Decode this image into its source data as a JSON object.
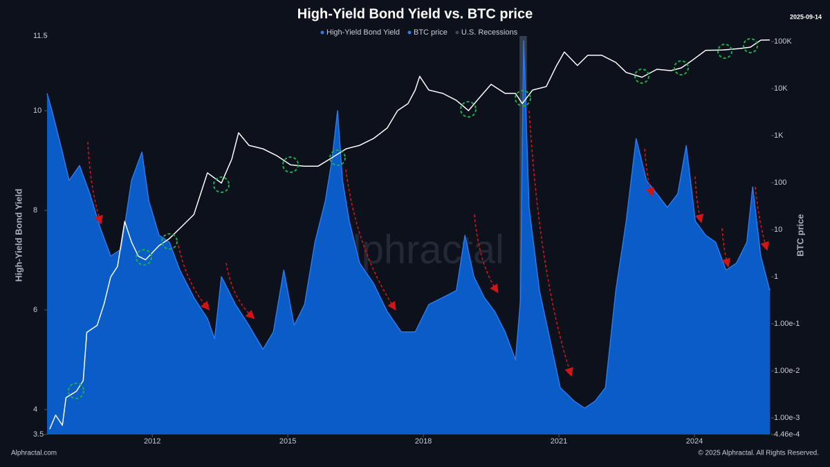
{
  "chart_data": {
    "type": "line",
    "title": "High-Yield Bond Yield vs. BTC price",
    "date": "2025-09-14",
    "ylabel": "High-Yield Bond Yield",
    "y2label": "BTC price",
    "watermark": "Alphractal",
    "footer_left": "Alphractal.com",
    "footer_right": "© 2025 Alphractal. All Rights Reserved.",
    "xlim": [
      2009.67,
      2025.7
    ],
    "xticks": [
      2012,
      2015,
      2018,
      2021,
      2024
    ],
    "ylim": [
      3.5,
      11.5
    ],
    "yticks": [
      3.5,
      4,
      6,
      8,
      10,
      11.5
    ],
    "y2lim": [
      0.000446,
      131000
    ],
    "y2log": true,
    "y2ticks": [
      {
        "value": 100000,
        "label": "100K"
      },
      {
        "value": 10000,
        "label": "10K"
      },
      {
        "value": 1000,
        "label": "1K"
      },
      100,
      10,
      1,
      {
        "value": 0.1,
        "label": "1.00e-1"
      },
      {
        "value": 0.01,
        "label": "1.00e-2"
      },
      {
        "value": 0.001,
        "label": "1.00e-3"
      },
      {
        "value": 0.000446,
        "label": "4.46e-4"
      }
    ],
    "recession": {
      "name": "U.S. Recessions",
      "color": "#3b4659",
      "x": [
        2020.13,
        2020.29
      ]
    },
    "series": [
      {
        "name": "High-Yield Bond Yield",
        "color": "#2f7bf0",
        "fill": "#0a5cc7",
        "x": [
          2009.67,
          2009.78,
          2010.01,
          2010.16,
          2010.39,
          2010.62,
          2010.85,
          2011.08,
          2011.31,
          2011.54,
          2011.77,
          2011.92,
          2012.15,
          2012.38,
          2012.61,
          2012.92,
          2013.22,
          2013.38,
          2013.53,
          2013.84,
          2014.14,
          2014.45,
          2014.68,
          2014.91,
          2015.14,
          2015.37,
          2015.6,
          2015.83,
          2015.98,
          2016.1,
          2016.21,
          2016.36,
          2016.59,
          2016.9,
          2017.2,
          2017.51,
          2017.82,
          2018.12,
          2018.43,
          2018.73,
          2018.92,
          2019.12,
          2019.35,
          2019.58,
          2019.81,
          2020.04,
          2020.15,
          2020.22,
          2020.34,
          2020.57,
          2020.8,
          2021.03,
          2021.34,
          2021.57,
          2021.8,
          2022.03,
          2022.26,
          2022.49,
          2022.71,
          2022.94,
          2023.17,
          2023.4,
          2023.63,
          2023.82,
          2024.02,
          2024.25,
          2024.47,
          2024.7,
          2024.93,
          2025.16,
          2025.29,
          2025.47,
          2025.67
        ],
        "values": [
          10.35,
          10.0,
          9.17,
          8.6,
          8.9,
          8.33,
          7.64,
          7.08,
          7.22,
          8.6,
          9.17,
          8.2,
          7.5,
          7.36,
          6.8,
          6.25,
          5.83,
          5.42,
          6.67,
          6.11,
          5.69,
          5.21,
          5.56,
          6.8,
          5.69,
          6.11,
          7.36,
          8.19,
          9.03,
          10.0,
          8.6,
          7.78,
          6.94,
          6.53,
          5.97,
          5.56,
          5.56,
          6.11,
          6.25,
          6.39,
          7.5,
          6.67,
          6.25,
          5.97,
          5.56,
          5.0,
          6.2,
          11.4,
          8.06,
          6.39,
          5.42,
          4.44,
          4.17,
          4.03,
          4.17,
          4.44,
          6.39,
          7.78,
          9.44,
          8.6,
          8.33,
          8.06,
          8.33,
          9.3,
          7.78,
          7.5,
          7.36,
          6.8,
          6.94,
          7.36,
          8.47,
          7.08,
          6.39
        ]
      },
      {
        "name": "BTC price",
        "color": "#ffffff",
        "axis": "y2",
        "x": [
          2009.73,
          2009.86,
          2010.01,
          2010.09,
          2010.32,
          2010.47,
          2010.55,
          2010.78,
          2010.93,
          2011.08,
          2011.23,
          2011.39,
          2011.54,
          2011.69,
          2011.85,
          2012.15,
          2012.38,
          2012.61,
          2012.92,
          2013.22,
          2013.53,
          2013.76,
          2013.91,
          2014.14,
          2014.45,
          2014.76,
          2015.06,
          2015.37,
          2015.67,
          2015.98,
          2016.29,
          2016.59,
          2016.9,
          2017.2,
          2017.43,
          2017.66,
          2017.82,
          2017.92,
          2018.12,
          2018.43,
          2018.73,
          2019.0,
          2019.19,
          2019.5,
          2019.81,
          2020.04,
          2020.19,
          2020.42,
          2020.72,
          2020.95,
          2021.12,
          2021.41,
          2021.64,
          2021.95,
          2022.26,
          2022.49,
          2022.84,
          2023.17,
          2023.48,
          2023.71,
          2023.94,
          2024.25,
          2024.63,
          2025.01,
          2025.24,
          2025.47,
          2025.67
        ],
        "values": [
          0.00058,
          0.00115,
          0.0007,
          0.0027,
          0.0037,
          0.0062,
          0.066,
          0.093,
          0.26,
          1,
          1.66,
          15,
          5.5,
          2.75,
          2.3,
          4.6,
          6.5,
          10.7,
          21,
          162,
          98,
          316,
          1150,
          620,
          525,
          372,
          240,
          224,
          224,
          340,
          525,
          620,
          870,
          1450,
          3400,
          4800,
          9300,
          18200,
          9300,
          7900,
          5600,
          3400,
          5600,
          12300,
          7900,
          7900,
          4800,
          9300,
          11000,
          31000,
          60000,
          31000,
          51000,
          51000,
          36000,
          22000,
          17400,
          25700,
          24000,
          27500,
          39000,
          65000,
          66000,
          71000,
          76000,
          107000,
          108000
        ]
      }
    ]
  }
}
